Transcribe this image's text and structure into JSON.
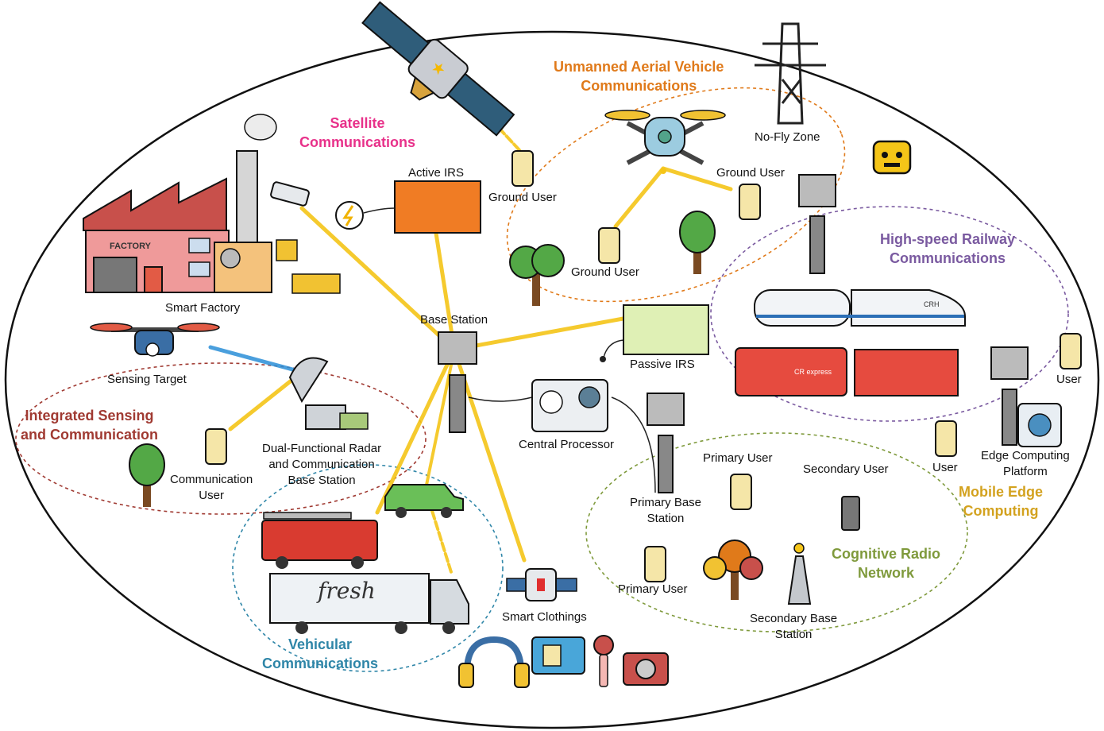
{
  "colors": {
    "satellite": "#e8318a",
    "uav": "#e07a1a",
    "railway": "#7a5aa0",
    "isac": "#a03a32",
    "vehicular": "#2f86a8",
    "cognitive_radio": "#7f9a3c",
    "mec": "#d3a21f",
    "signal_beam": "#f5c518"
  },
  "scenarios": {
    "satellite": "Satellite\nCommunications",
    "uav": "Unmanned Aerial Vehicle\nCommunications",
    "railway": "High-speed Railway\nCommunications",
    "isac": "Integrated Sensing\nand Communication",
    "vehicular": "Vehicular\nCommunications",
    "cognitive_radio": "Cognitive Radio\nNetwork",
    "mec": "Mobile Edge\nComputing"
  },
  "labels": {
    "active_irs": "Active IRS",
    "ground_user_sat": "Ground User",
    "no_fly_zone": "No-Fly Zone",
    "ground_user_uav_right": "Ground User",
    "ground_user_uav_left": "Ground User",
    "smart_factory": "Smart Factory",
    "factory_sign": "FACTORY",
    "base_station": "Base Station",
    "passive_irs": "Passive IRS",
    "sensing_target": "Sensing Target",
    "dfrc_base_station": "Dual-Functional Radar\nand Communication\nBase Station",
    "communication_user": "Communication\nUser",
    "central_processor": "Central Processor",
    "primary_user_top": "Primary User",
    "secondary_user": "Secondary User",
    "primary_base_station": "Primary Base\nStation",
    "primary_user_bottom": "Primary User",
    "secondary_base_station": "Secondary Base\nStation",
    "smart_clothings": "Smart Clothings",
    "user_mec_top": "User",
    "user_mec_mid": "User",
    "edge_computing_platform": "Edge Computing\nPlatform",
    "truck_text": "fresh",
    "train_top_text": "CRH",
    "train_bottom_text": "CR express"
  },
  "icons": [
    "satellite-icon",
    "uav-drone-icon",
    "power-tower-icon",
    "robot-icon",
    "factory-icon",
    "surveillance-camera-icon",
    "active-irs-panel-icon",
    "power-plug-icon",
    "passive-irs-panel-icon",
    "base-station-icon",
    "central-processor-icon",
    "smartphone-icon",
    "tree-icon",
    "bullet-train-icon",
    "freight-train-icon",
    "radar-dish-icon",
    "sensing-drone-icon",
    "car-icon",
    "fire-truck-icon",
    "refrigerated-truck-icon",
    "smartwatch-icon",
    "headphones-icon",
    "id-card-icon",
    "microphone-icon",
    "camera-icon",
    "walkie-talkie-icon",
    "secondary-antenna-icon",
    "edge-server-icon"
  ]
}
